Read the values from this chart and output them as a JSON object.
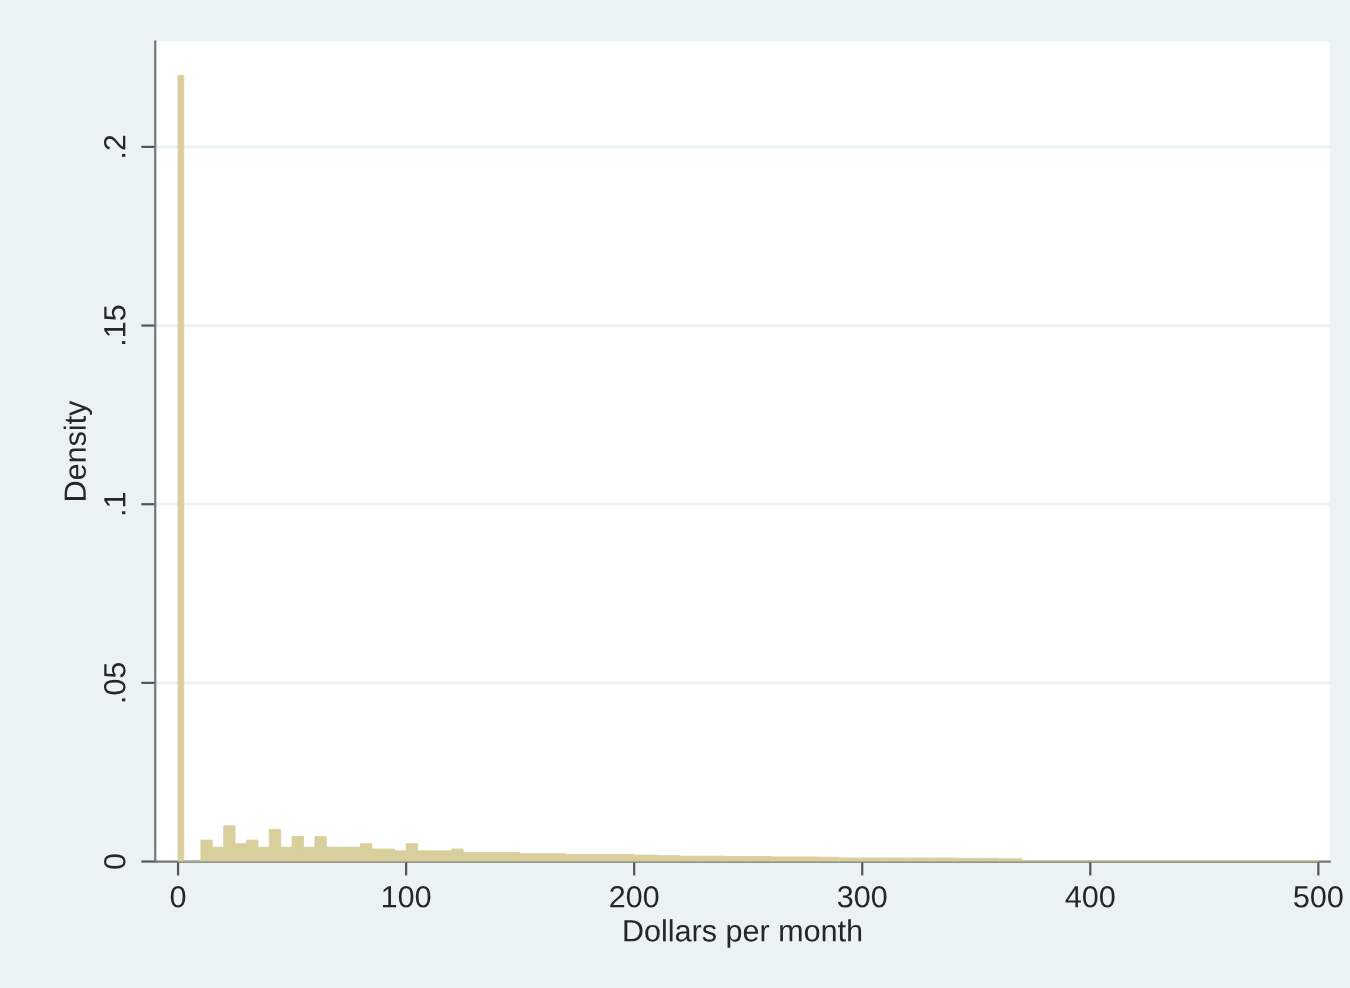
{
  "chart_data": {
    "type": "histogram",
    "xlabel": "Dollars per month",
    "ylabel": "Density",
    "color": "#d8cf9c",
    "bins": [
      0,
      2.5,
      10,
      15,
      20,
      25,
      30,
      35,
      40,
      45,
      50,
      55,
      60,
      65,
      70,
      75,
      80,
      85,
      90,
      95,
      100,
      105,
      110,
      115,
      120,
      125,
      130,
      140,
      150,
      160,
      170,
      180,
      190,
      200,
      210,
      220,
      230,
      240,
      250,
      260,
      270,
      280,
      290,
      300,
      310,
      320,
      330,
      340,
      350,
      360,
      370,
      500
    ],
    "values": [
      0.22,
      0,
      0.006,
      0.004,
      0.01,
      0.005,
      0.006,
      0.004,
      0.009,
      0.004,
      0.007,
      0.004,
      0.007,
      0.004,
      0.004,
      0.004,
      0.005,
      0.0035,
      0.0035,
      0.003,
      0.005,
      0.003,
      0.003,
      0.003,
      0.0035,
      0.0025,
      0.0025,
      0.0025,
      0.0022,
      0.0022,
      0.002,
      0.002,
      0.002,
      0.0018,
      0.0017,
      0.0015,
      0.0015,
      0.0014,
      0.0014,
      0.0013,
      0.0013,
      0.0012,
      0.001,
      0.001,
      0.001,
      0.001,
      0.001,
      0.0009,
      0.0009,
      0.0008,
      0.0003
    ],
    "xlim": [
      -10,
      505
    ],
    "ylim": [
      0,
      0.2295
    ],
    "xticks": [
      0,
      100,
      200,
      300,
      400,
      500
    ],
    "yticks": [
      {
        "value": 0,
        "label": "0"
      },
      {
        "value": 0.05,
        "label": ".05"
      },
      {
        "value": 0.1,
        "label": ".1"
      },
      {
        "value": 0.15,
        "label": ".15"
      },
      {
        "value": 0.2,
        "label": ".2"
      }
    ],
    "grid": "y"
  }
}
